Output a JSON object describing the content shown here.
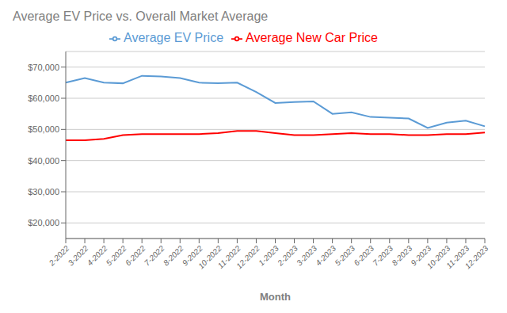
{
  "chart_data": {
    "type": "line",
    "title": "Average EV Price vs. Overall Market Average",
    "xlabel": "Month",
    "categories": [
      "2-2022",
      "3-2022",
      "4-2022",
      "5-2022",
      "6-2022",
      "7-2022",
      "8-2022",
      "9-2022",
      "10-2022",
      "11-2022",
      "12-2022",
      "1-2023",
      "2-2023",
      "3-2023",
      "4-2023",
      "5-2023",
      "6-2023",
      "7-2023",
      "8-2023",
      "9-2023",
      "10-2023",
      "11-2023",
      "12-2023"
    ],
    "series": [
      {
        "name": "Average EV Price",
        "color": "#5B9BD5",
        "values": [
          65000,
          66500,
          65000,
          64800,
          67200,
          67000,
          66500,
          65000,
          64800,
          65000,
          62000,
          58500,
          58800,
          59000,
          55000,
          55500,
          54000,
          53800,
          53500,
          50500,
          52200,
          52800,
          51000
        ]
      },
      {
        "name": "Average New Car Price",
        "color": "#FF0000",
        "values": [
          46500,
          46500,
          47000,
          48200,
          48500,
          48500,
          48500,
          48500,
          48800,
          49500,
          49500,
          48800,
          48200,
          48200,
          48500,
          48800,
          48500,
          48500,
          48200,
          48200,
          48500,
          48500,
          49000
        ]
      }
    ],
    "ylim": [
      15000,
      75000
    ],
    "yticks": [
      {
        "value": 20000,
        "label": "$20,000"
      },
      {
        "value": 30000,
        "label": "$30,000"
      },
      {
        "value": 40000,
        "label": "$40,000"
      },
      {
        "value": 50000,
        "label": "$50,000"
      },
      {
        "value": 60000,
        "label": "$60,000"
      },
      {
        "value": 70000,
        "label": "$70,000"
      }
    ],
    "grid": true,
    "legend": "top"
  }
}
